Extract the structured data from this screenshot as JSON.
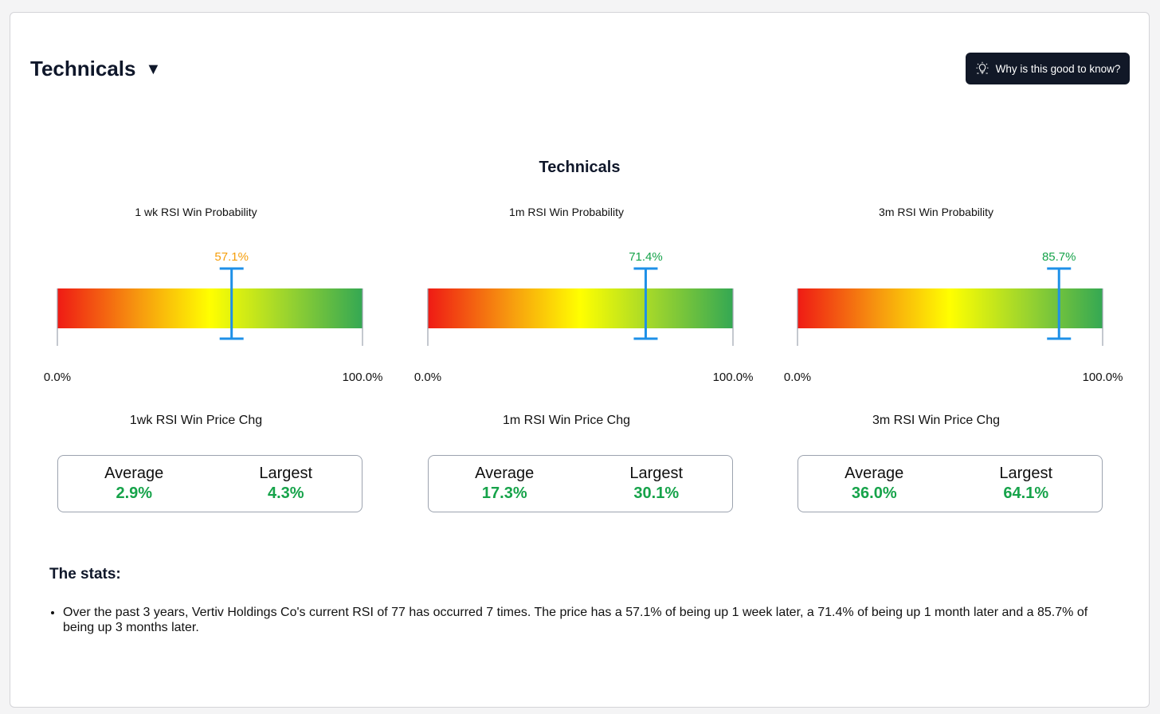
{
  "header": {
    "title": "Technicals",
    "caret": "▼",
    "help_button": "Why is this good to know?",
    "help_icon": "lightbulb-icon"
  },
  "section_title": "Technicals",
  "gauges": [
    {
      "label": "1 wk RSI Win Probability",
      "value_text": "57.1%",
      "value": 57.1,
      "min_label": "0.0%",
      "max_label": "100.0%",
      "value_color": "#f59e0b",
      "chg_label": "1wk RSI Win Price Chg",
      "avg_label": "Average",
      "avg": "2.9%",
      "max_chg_label": "Largest",
      "max_chg": "4.3%"
    },
    {
      "label": "1m RSI Win Probability",
      "value_text": "71.4%",
      "value": 71.4,
      "min_label": "0.0%",
      "max_label": "100.0%",
      "value_color": "#16a34a",
      "chg_label": "1m RSI Win Price Chg",
      "avg_label": "Average",
      "avg": "17.3%",
      "max_chg_label": "Largest",
      "max_chg": "30.1%"
    },
    {
      "label": "3m RSI Win Probability",
      "value_text": "85.7%",
      "value": 85.7,
      "min_label": "0.0%",
      "max_label": "100.0%",
      "value_color": "#16a34a",
      "chg_label": "3m RSI Win Price Chg",
      "avg_label": "Average",
      "avg": "36.0%",
      "max_chg_label": "Largest",
      "max_chg": "64.1%"
    }
  ],
  "stats": {
    "heading": "The stats:",
    "items": [
      "Over the past 3 years, Vertiv Holdings Co's current RSI of 77 has occurred 7 times. The price has a 57.1% of being up 1 week later, a 71.4% of being up 1 month later and a 85.7% of being up 3 months later."
    ]
  },
  "colors": {
    "marker": "#1e90e8",
    "positive": "#16a34a"
  }
}
